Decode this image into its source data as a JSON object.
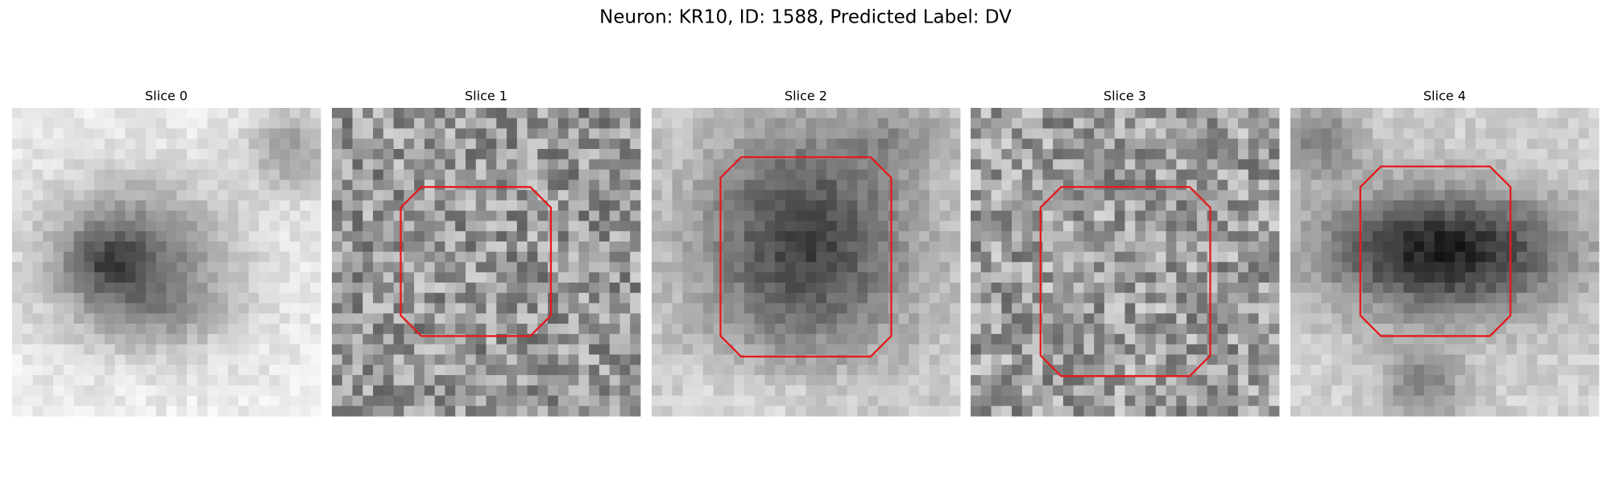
{
  "title": "Neuron: KR10, ID: 1588, Predicted Label: DV",
  "panels": [
    {
      "title": "Slice 0"
    },
    {
      "title": "Slice 1"
    },
    {
      "title": "Slice 2"
    },
    {
      "title": "Slice 3"
    },
    {
      "title": "Slice 4"
    }
  ]
}
